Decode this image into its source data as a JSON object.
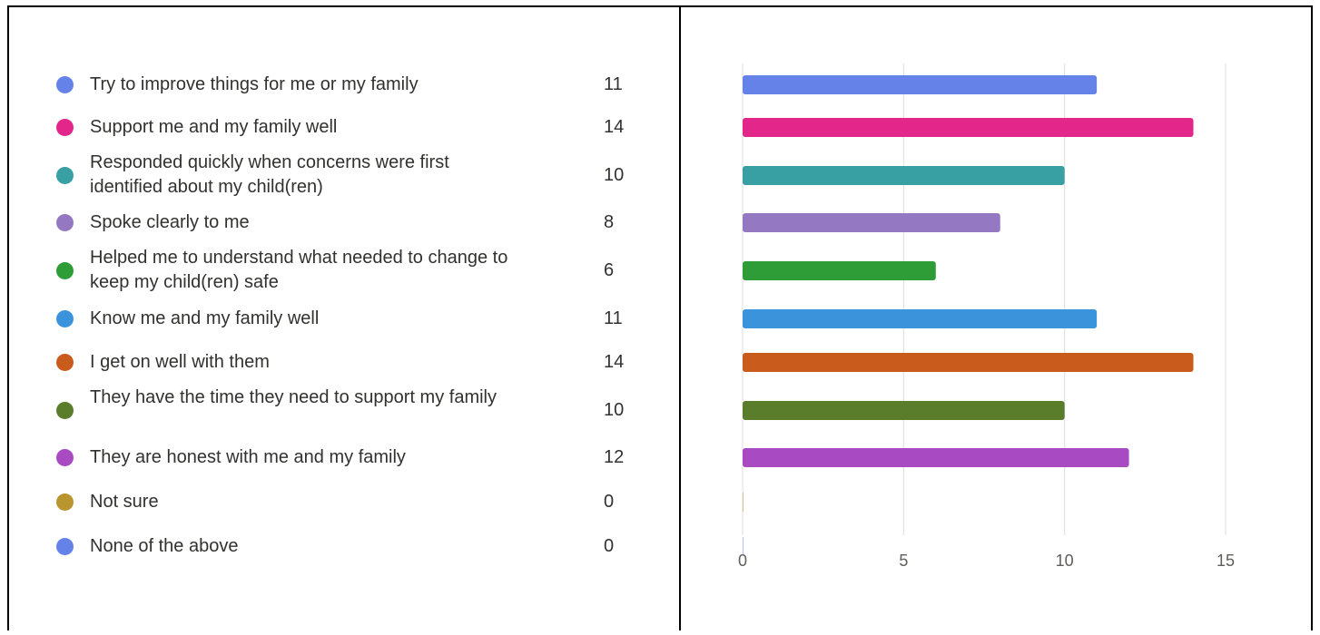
{
  "chart_data": {
    "type": "bar",
    "orientation": "horizontal",
    "categories": [
      "Try to improve things for me or my family",
      "Support me and my family well",
      "Responded quickly when concerns were first identified about my child(ren)",
      "Spoke clearly to me",
      "Helped me to understand what needed to change to keep my child(ren) safe",
      "Know me and my family well",
      "I get on well with them",
      "They have the time they need to support my family",
      "They are honest with me and my family",
      "Not sure",
      "None of the above"
    ],
    "values": [
      11,
      14,
      10,
      8,
      6,
      11,
      14,
      10,
      12,
      0,
      0
    ],
    "colors": [
      "#6582e8",
      "#e3278a",
      "#389fa3",
      "#9479c2",
      "#2f9d37",
      "#3a93db",
      "#c95b1c",
      "#5a7d2c",
      "#a84bc3",
      "#b8952f",
      "#6582e8"
    ],
    "xlim": [
      0,
      15
    ],
    "xticks": [
      "0",
      "5",
      "10",
      "15"
    ],
    "grid": true,
    "legend": "left"
  }
}
